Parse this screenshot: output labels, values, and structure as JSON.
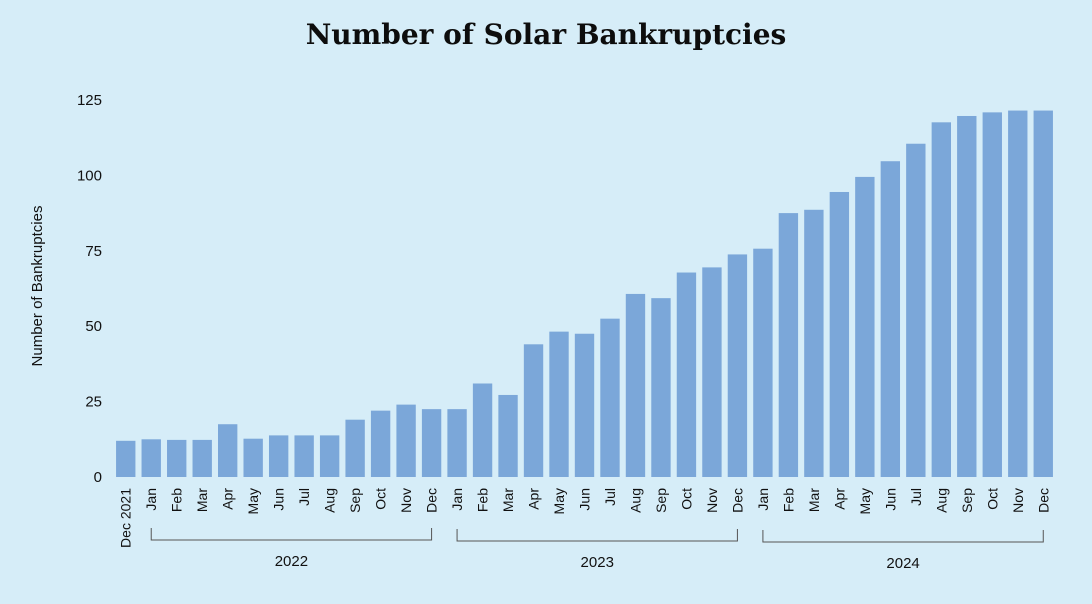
{
  "chart_data": {
    "type": "bar",
    "title": "Number of Solar Bankruptcies",
    "ylabel": "Number of Bankruptcies",
    "xlabel": "",
    "ylim": [
      0,
      125
    ],
    "yticks": [
      0,
      25,
      50,
      75,
      100,
      125
    ],
    "bar_color": "#7ba7d9",
    "background_color": "#d6edf8",
    "categories": [
      "Dec 2021",
      "Jan",
      "Feb",
      "Mar",
      "Apr",
      "May",
      "Jun",
      "Jul",
      "Aug",
      "Sep",
      "Oct",
      "Nov",
      "Dec",
      "Jan",
      "Feb",
      "Mar",
      "Apr",
      "May",
      "Jun",
      "Jul",
      "Aug",
      "Sep",
      "Oct",
      "Nov",
      "Dec",
      "Jan",
      "Feb",
      "Mar",
      "Apr",
      "May",
      "Jun",
      "Jul",
      "Aug",
      "Sep",
      "Oct",
      "Nov",
      "Dec"
    ],
    "values": [
      12,
      12.5,
      12.3,
      12.3,
      17.5,
      12.7,
      13.8,
      13.8,
      13.8,
      19,
      22,
      24,
      22.5,
      22.5,
      31,
      27.2,
      44,
      48.2,
      47.5,
      52.5,
      60.7,
      59.3,
      67.8,
      69.5,
      73.8,
      75.7,
      87.5,
      88.6,
      94.5,
      99.5,
      104.7,
      110.5,
      117.6,
      119.7,
      120.9,
      121.5,
      121.5
    ],
    "year_groups": [
      {
        "label": "2022",
        "first": 1,
        "last": 12
      },
      {
        "label": "2023",
        "first": 13,
        "last": 24
      },
      {
        "label": "2024",
        "first": 25,
        "last": 36
      }
    ],
    "grid": false,
    "legend": "none"
  }
}
